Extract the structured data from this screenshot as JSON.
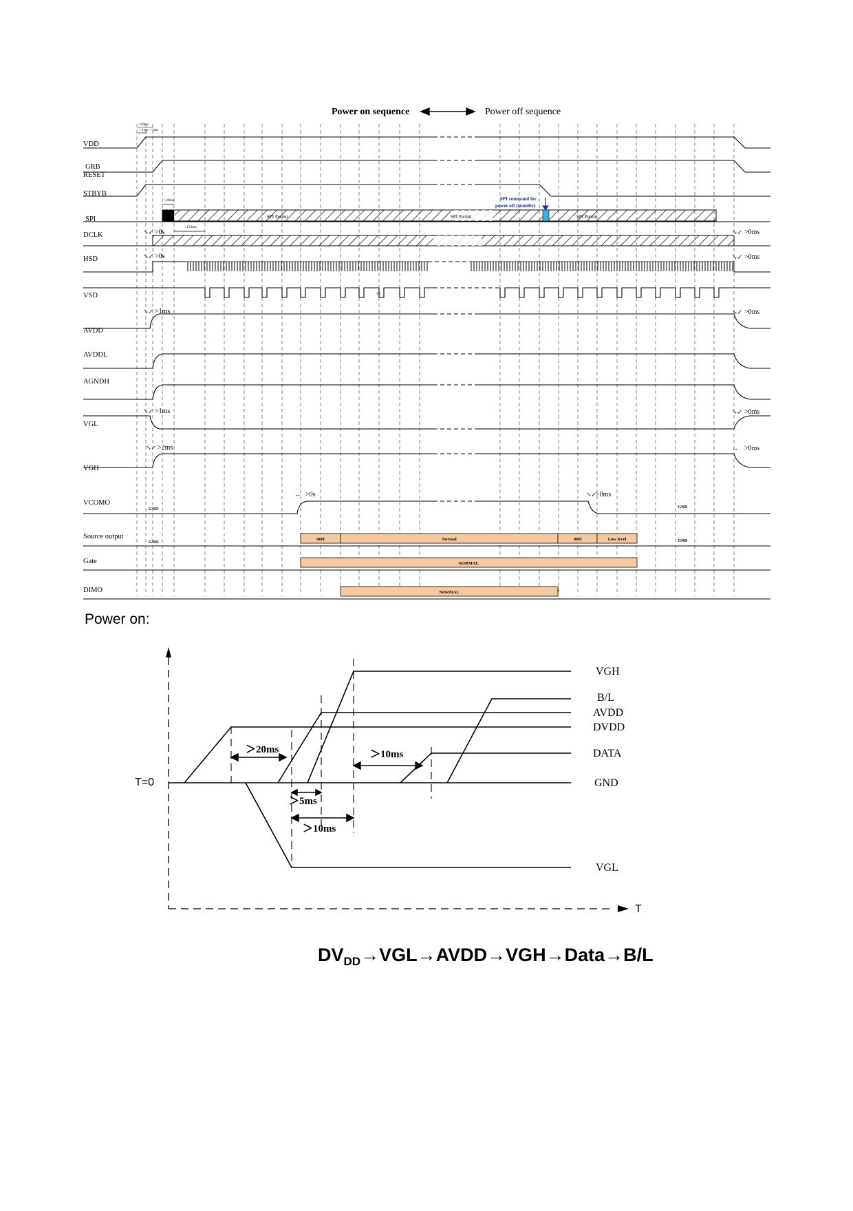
{
  "timing": {
    "header_on": "Power on sequence",
    "header_off": "Power off sequence",
    "signals": {
      "vdd": "VDD",
      "grb": "GRB",
      "reset": "RESET",
      "stbyb": "STBYB",
      "spi": "SPI",
      "dclk": "DCLK",
      "hsd": "HSD",
      "vsd": "VSD",
      "avdd": "AVDD",
      "avddl": "AVDDL",
      "agndh": "AGNDH",
      "vgl": "VGL",
      "vgh": "VGH",
      "vcomo": "VCOMO",
      "source": "Source output",
      "gate": "Gate",
      "dimo": "DIMO"
    },
    "spi_permit": "SPI Permit",
    "spi_command_1": "SPI command for",
    "spi_command_2": "power off (standby)",
    "vdd_small_1": "<20ms",
    "vdd_small_2": ">1ms",
    "vdd_small_3": ">1ms",
    "spi_small": ">20ms",
    "dclk_small": "<150ms",
    "gt0s_dclk": ">0s",
    "gt0s_hsd": ">0s",
    "gt1ms_avdd": ">1ms",
    "gt1ms_vgl": ">1ms",
    "gt2ms_vgh": ">2ms",
    "gt0s_vcom": ">0s",
    "gt0ms_dclk": ">0ms",
    "gt0ms_hsd": ">0ms",
    "gt0ms_avdd": ">0ms",
    "gt0ms_vgl": ">0ms",
    "gt0ms_vgh": ">0ms",
    "gt0ms_vcom": ">0ms",
    "gnd_vcom_left": "GND",
    "gnd_vcom_right": "GND",
    "gnd_src_left": "GND",
    "gnd_src_right": "GND",
    "src_00h_1": "00H",
    "src_normal": "Normal",
    "src_00h_2": "00H",
    "src_low": "Low level",
    "gate_normal": "NORMAL",
    "dimo_normal": "NORMAL",
    "vsd_num_1": "10",
    "vsd_num_2": "1"
  },
  "power_on": {
    "title": "Power on:",
    "t0": "T=0",
    "t_axis": "T",
    "labels": {
      "vgh": "VGH",
      "bl": "B/L",
      "avdd": "AVDD",
      "dvdd": "DVDD",
      "data": "DATA",
      "gnd": "GND",
      "vgl": "VGL"
    },
    "gaps": {
      "g20": "＞20ms",
      "g10a": "＞10ms",
      "g5": "＞5ms",
      "g10b": "＞10ms"
    },
    "sequence": {
      "dv": "DV",
      "dd": "DD",
      "rest": "→VGL→AVDD→VGH→Data→B/L"
    }
  },
  "colors": {
    "bar": "#f6c9a0",
    "spi_cmd": "#2fb6e6",
    "spi_text": "#1a2f9c"
  }
}
